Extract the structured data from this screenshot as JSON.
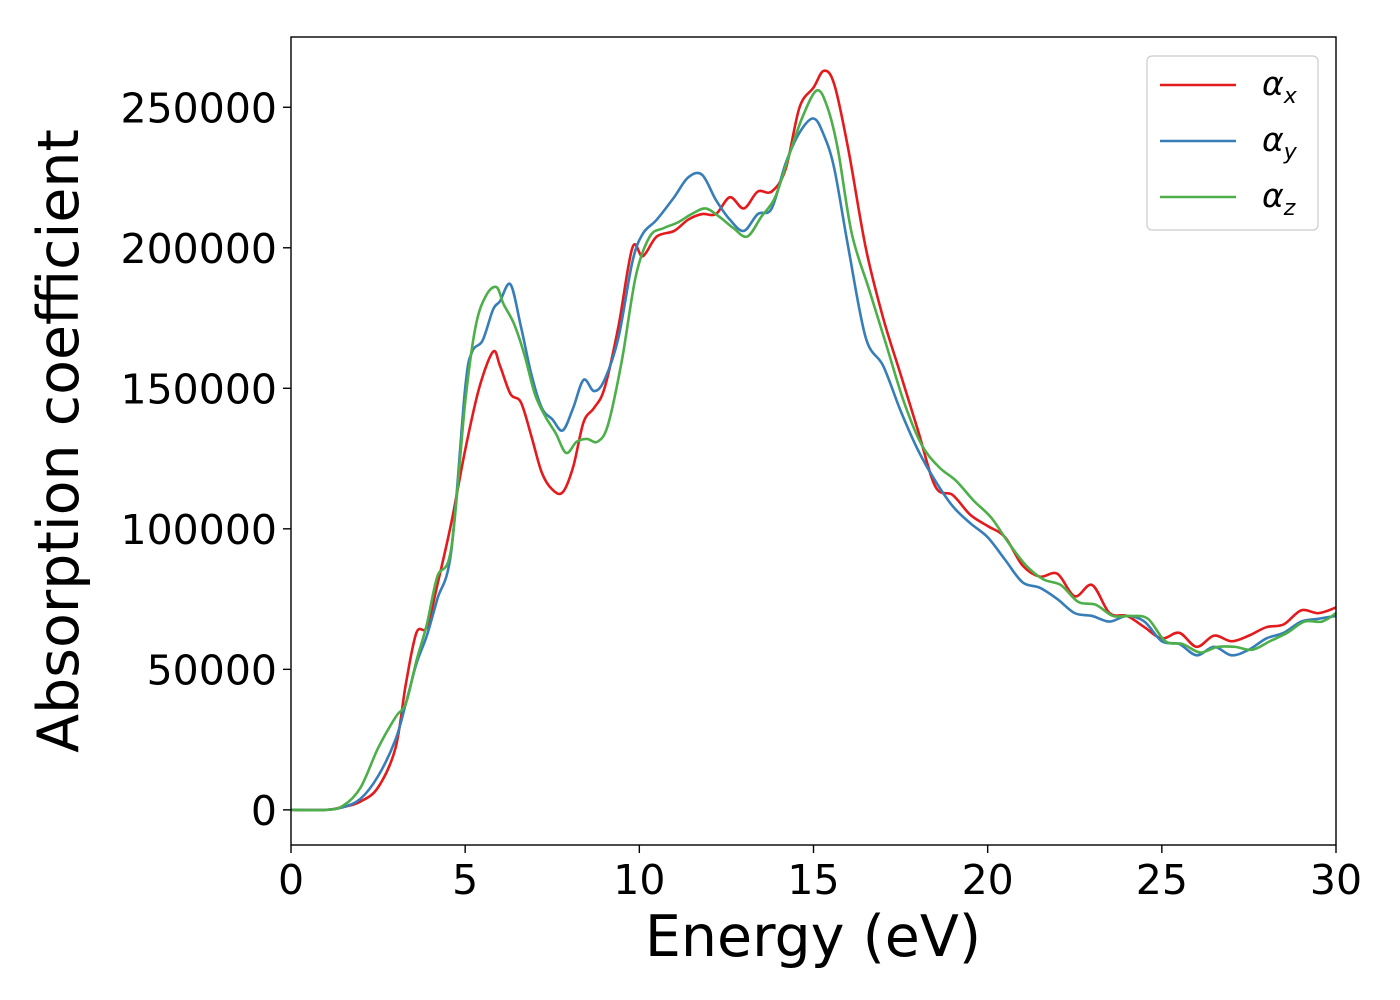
{
  "chart_data": {
    "type": "line",
    "title": "",
    "xlabel": "Energy (eV)",
    "ylabel": "Absorption coefficient",
    "xlim": [
      0,
      30
    ],
    "ylim": [
      -12500,
      275000
    ],
    "xticks": [
      0,
      5,
      10,
      15,
      20,
      25,
      30
    ],
    "xtick_labels": [
      "0",
      "5",
      "10",
      "15",
      "20",
      "25",
      "30"
    ],
    "yticks": [
      0,
      50000,
      100000,
      150000,
      200000,
      250000
    ],
    "ytick_labels": [
      "0",
      "50000",
      "100000",
      "150000",
      "200000",
      "250000"
    ],
    "grid": false,
    "legend_position": "top-right",
    "series": [
      {
        "name": "α",
        "subscript": "x",
        "color": "#e41a1c",
        "x": [
          0,
          1,
          1.5,
          2,
          2.5,
          3,
          3.3,
          3.6,
          3.9,
          4.2,
          4.6,
          5,
          5.4,
          5.8,
          6,
          6.3,
          6.6,
          6.9,
          7.2,
          7.5,
          7.8,
          8.1,
          8.4,
          8.7,
          9,
          9.4,
          9.8,
          10.1,
          10.5,
          11,
          11.4,
          11.8,
          12.2,
          12.6,
          13,
          13.4,
          13.8,
          14.2,
          14.6,
          15,
          15.3,
          15.6,
          16,
          16.5,
          17,
          17.5,
          18,
          18.5,
          19,
          19.5,
          20,
          20.5,
          21,
          21.5,
          22,
          22.5,
          23,
          23.5,
          24,
          24.5,
          25,
          25.5,
          26,
          26.5,
          27,
          27.5,
          28,
          28.5,
          29,
          29.5,
          30
        ],
        "y": [
          0,
          0,
          1000,
          3000,
          8000,
          22000,
          45000,
          63000,
          65000,
          80000,
          102000,
          128000,
          150000,
          163000,
          158000,
          148000,
          145000,
          133000,
          120000,
          114000,
          113000,
          122000,
          138000,
          143000,
          150000,
          172000,
          200000,
          197000,
          204000,
          206000,
          210000,
          212000,
          212000,
          218000,
          214000,
          220000,
          220000,
          228000,
          250000,
          257000,
          263000,
          258000,
          235000,
          200000,
          175000,
          155000,
          135000,
          115000,
          112000,
          105000,
          101000,
          97000,
          87000,
          83000,
          84000,
          76000,
          80000,
          70000,
          69000,
          65000,
          61000,
          63000,
          58000,
          62000,
          60000,
          62000,
          65000,
          66000,
          71000,
          70000,
          72000
        ]
      },
      {
        "name": "α",
        "subscript": "y",
        "color": "#377eb8",
        "x": [
          0,
          1,
          1.5,
          2,
          2.5,
          3,
          3.3,
          3.6,
          3.9,
          4.2,
          4.6,
          5,
          5.2,
          5.5,
          5.8,
          6,
          6.3,
          6.6,
          6.9,
          7.2,
          7.5,
          7.8,
          8.1,
          8.4,
          8.7,
          9,
          9.4,
          9.8,
          10.1,
          10.5,
          11,
          11.4,
          11.8,
          12.2,
          12.6,
          13,
          13.4,
          13.8,
          14.2,
          14.6,
          15,
          15.3,
          15.6,
          16,
          16.5,
          17,
          17.5,
          18,
          18.5,
          19,
          19.5,
          20,
          20.5,
          21,
          21.5,
          22,
          22.5,
          23,
          23.5,
          24,
          24.5,
          25,
          25.5,
          26,
          26.5,
          27,
          27.5,
          28,
          28.5,
          29,
          29.5,
          30
        ],
        "y": [
          0,
          0,
          1000,
          4000,
          12000,
          25000,
          38000,
          52000,
          62000,
          75000,
          92000,
          150000,
          163000,
          167000,
          178000,
          181000,
          187000,
          172000,
          155000,
          143000,
          139000,
          135000,
          143000,
          153000,
          149000,
          153000,
          168000,
          195000,
          205000,
          210000,
          218000,
          225000,
          226000,
          217000,
          210000,
          206000,
          212000,
          214000,
          230000,
          241000,
          246000,
          240000,
          228000,
          200000,
          168000,
          158000,
          142000,
          128000,
          117000,
          108000,
          102000,
          97000,
          89000,
          81000,
          79000,
          75000,
          70000,
          69000,
          67000,
          69000,
          67000,
          60000,
          59000,
          55000,
          58000,
          55000,
          57000,
          61000,
          63000,
          67000,
          68000,
          69000
        ]
      },
      {
        "name": "α",
        "subscript": "z",
        "color": "#4daf4a",
        "x": [
          0,
          1,
          1.5,
          2,
          2.5,
          3,
          3.3,
          3.6,
          3.9,
          4.2,
          4.6,
          5,
          5.3,
          5.6,
          5.9,
          6.1,
          6.4,
          6.7,
          7,
          7.3,
          7.6,
          7.9,
          8.2,
          8.5,
          8.8,
          9.1,
          9.5,
          9.9,
          10.3,
          10.7,
          11.1,
          11.5,
          11.9,
          12.3,
          12.7,
          13.1,
          13.5,
          13.9,
          14.3,
          14.7,
          15.1,
          15.4,
          15.7,
          16.1,
          16.6,
          17.1,
          17.6,
          18.1,
          18.6,
          19.1,
          19.6,
          20.1,
          20.6,
          21.1,
          21.6,
          22.1,
          22.6,
          23.1,
          23.6,
          24.1,
          24.6,
          25.1,
          25.6,
          26.1,
          26.6,
          27.1,
          27.6,
          28.1,
          28.6,
          29.1,
          29.6,
          30
        ],
        "y": [
          0,
          0,
          1500,
          8000,
          22000,
          33000,
          38000,
          53000,
          66000,
          83000,
          93000,
          145000,
          172000,
          183000,
          186000,
          180000,
          173000,
          162000,
          148000,
          140000,
          134000,
          127000,
          131000,
          132000,
          131000,
          137000,
          160000,
          190000,
          204000,
          207000,
          209000,
          212000,
          214000,
          211000,
          207000,
          204000,
          211000,
          218000,
          233000,
          247000,
          256000,
          250000,
          235000,
          205000,
          185000,
          165000,
          145000,
          130000,
          122000,
          117000,
          110000,
          104000,
          95000,
          87000,
          82000,
          80000,
          74000,
          73000,
          69000,
          69000,
          68000,
          60000,
          59000,
          56000,
          58000,
          58000,
          57000,
          60000,
          63000,
          67000,
          67000,
          70000
        ]
      }
    ]
  }
}
